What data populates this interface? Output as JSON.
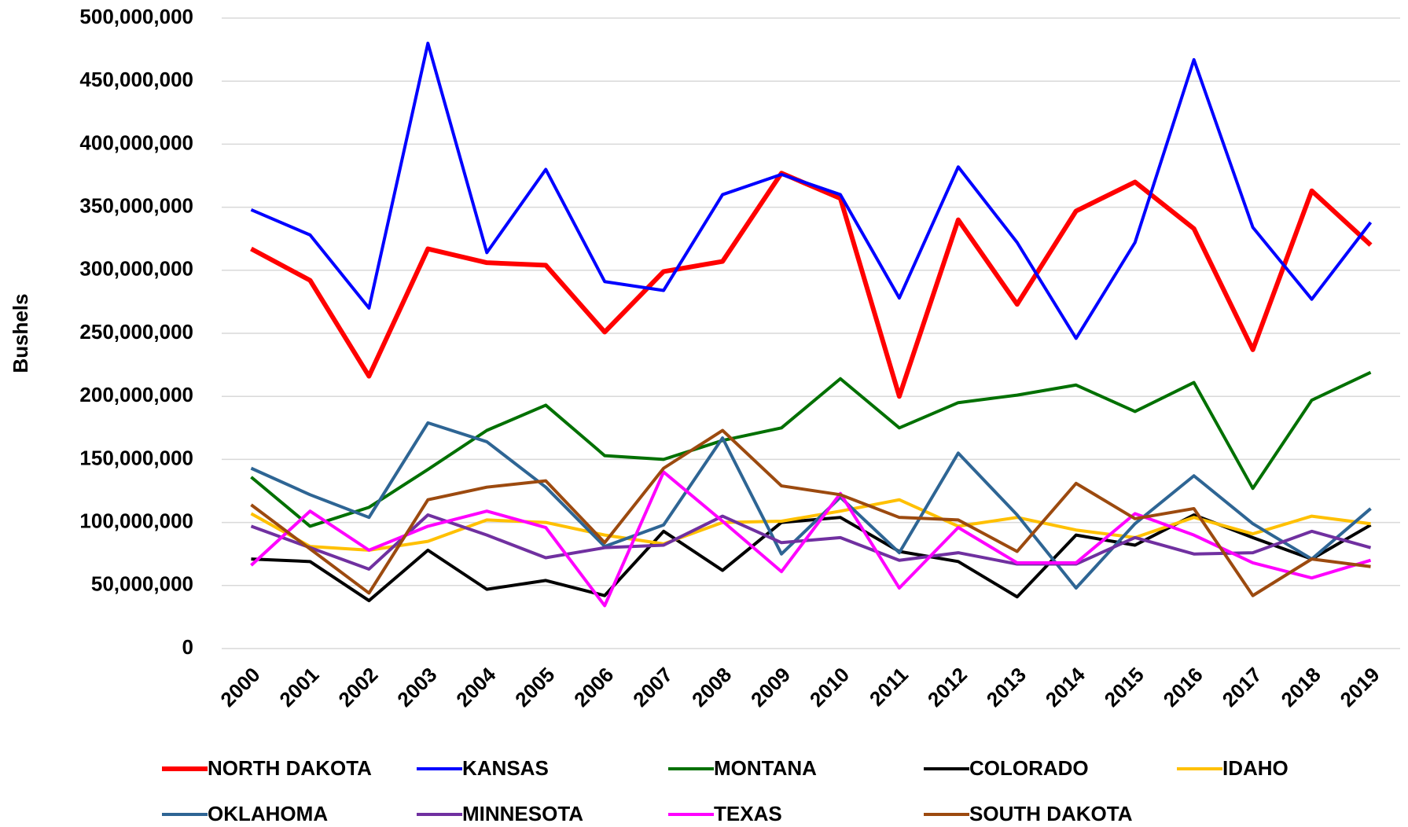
{
  "chart_data": {
    "type": "line",
    "y_label": "Bushels",
    "categories": [
      "2000",
      "2001",
      "2002",
      "2003",
      "2004",
      "2005",
      "2006",
      "2007",
      "2008",
      "2009",
      "2010",
      "2011",
      "2012",
      "2013",
      "2014",
      "2015",
      "2016",
      "2017",
      "2018",
      "2019"
    ],
    "ylim": [
      0,
      500000000
    ],
    "yticks": [
      0,
      {
        "value": 50000000,
        "label": "50,000,000"
      },
      {
        "value": 100000000,
        "label": "100,000,000"
      },
      {
        "value": 150000000,
        "label": "150,000,000"
      },
      {
        "value": 200000000,
        "label": "200,000,000"
      },
      {
        "value": 250000000,
        "label": "250,000,000"
      },
      {
        "value": 300000000,
        "label": "300,000,000"
      },
      {
        "value": 350000000,
        "label": "350,000,000"
      },
      {
        "value": 400000000,
        "label": "400,000,000"
      },
      {
        "value": 450000000,
        "label": "450,000,000"
      },
      {
        "value": 500000000,
        "label": "500,000,000"
      }
    ],
    "grid": true,
    "legend": "bottom",
    "series": [
      {
        "name": "NORTH DAKOTA",
        "color": "#ff0000",
        "values": [
          317000000,
          292000000,
          216000000,
          317000000,
          306000000,
          304000000,
          251000000,
          299000000,
          307000000,
          377000000,
          357000000,
          200000000,
          340000000,
          273000000,
          347000000,
          370000000,
          333000000,
          237000000,
          363000000,
          320000000
        ]
      },
      {
        "name": "KANSAS",
        "color": "#0000ff",
        "values": [
          348000000,
          328000000,
          270000000,
          480000000,
          314000000,
          380000000,
          291000000,
          284000000,
          360000000,
          376000000,
          360000000,
          278000000,
          382000000,
          322000000,
          246000000,
          322000000,
          467000000,
          334000000,
          277000000,
          338000000
        ]
      },
      {
        "name": "MONTANA",
        "color": "#007000",
        "values": [
          136000000,
          97000000,
          112000000,
          142000000,
          173000000,
          193000000,
          153000000,
          150000000,
          165000000,
          175000000,
          214000000,
          175000000,
          195000000,
          201000000,
          209000000,
          188000000,
          211000000,
          127000000,
          197000000,
          219000000
        ]
      },
      {
        "name": "COLORADO",
        "color": "#000000",
        "values": [
          71000000,
          69000000,
          38000000,
          78000000,
          47000000,
          54000000,
          42000000,
          93000000,
          62000000,
          100000000,
          104000000,
          77000000,
          69000000,
          41000000,
          90000000,
          82000000,
          106000000,
          88000000,
          71000000,
          98000000
        ]
      },
      {
        "name": "IDAHO",
        "color": "#ffc000",
        "values": [
          107000000,
          81000000,
          78000000,
          85000000,
          102000000,
          100000000,
          90000000,
          83000000,
          100000000,
          101000000,
          109000000,
          118000000,
          97000000,
          104000000,
          94000000,
          88000000,
          104000000,
          91000000,
          105000000,
          99000000
        ]
      },
      {
        "name": "OKLAHOMA",
        "color": "#2e6594",
        "values": [
          143000000,
          122000000,
          104000000,
          179000000,
          164000000,
          128000000,
          81000000,
          98000000,
          167000000,
          75000000,
          120000000,
          76000000,
          155000000,
          106000000,
          48000000,
          99000000,
          137000000,
          99000000,
          71000000,
          111000000
        ]
      },
      {
        "name": "MINNESOTA",
        "color": "#7030a0",
        "values": [
          97000000,
          80000000,
          63000000,
          106000000,
          90000000,
          72000000,
          80000000,
          82000000,
          105000000,
          84000000,
          88000000,
          70000000,
          76000000,
          67000000,
          67000000,
          88000000,
          75000000,
          76000000,
          93000000,
          80000000
        ]
      },
      {
        "name": "TEXAS",
        "color": "#ff00ff",
        "values": [
          66000000,
          109000000,
          78000000,
          97000000,
          109000000,
          96000000,
          34000000,
          140000000,
          101000000,
          61000000,
          123000000,
          48000000,
          96000000,
          68000000,
          68000000,
          107000000,
          90000000,
          68000000,
          56000000,
          70000000
        ]
      },
      {
        "name": "SOUTH DAKOTA",
        "color": "#9c4a0f",
        "values": [
          114000000,
          79000000,
          44000000,
          118000000,
          128000000,
          133000000,
          84000000,
          143000000,
          173000000,
          129000000,
          122000000,
          104000000,
          102000000,
          77000000,
          131000000,
          103000000,
          111000000,
          42000000,
          71000000,
          65000000
        ]
      }
    ]
  }
}
